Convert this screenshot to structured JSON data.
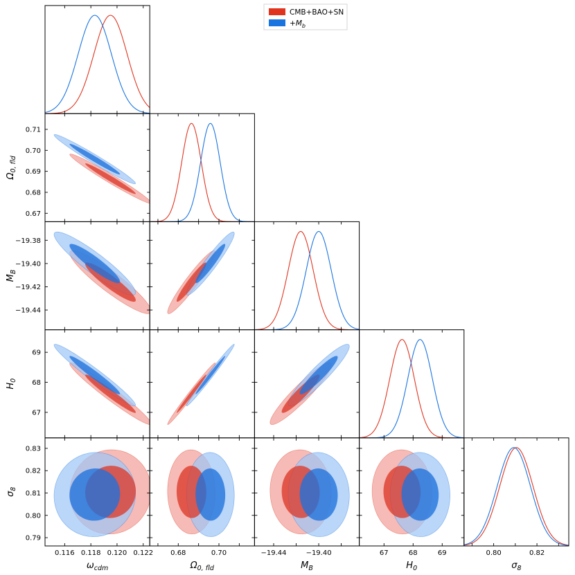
{
  "chart_data": {
    "type": "triangle-corner-plot",
    "parameters": [
      {
        "key": "omega_cdm",
        "symbol": "ω",
        "sub": "cdm",
        "range": [
          0.1145,
          0.1225
        ],
        "ticks": [
          0.116,
          0.118,
          0.12,
          0.122
        ],
        "tick_labels": [
          "0.116",
          "0.118",
          "0.120",
          "0.122"
        ]
      },
      {
        "key": "Omega_0_fld",
        "symbol": "Ω",
        "sub": "0, fld",
        "range": [
          0.666,
          0.7175
        ],
        "ticks": [
          0.67,
          0.68,
          0.69,
          0.7,
          0.71
        ],
        "tick_labels": [
          "0.67",
          "0.68",
          "0.69",
          "0.70",
          "0.71"
        ]
      },
      {
        "key": "M_B",
        "symbol": "M",
        "sub": "B",
        "range": [
          -19.457,
          -19.364
        ],
        "ticks": [
          -19.44,
          -19.42,
          -19.4,
          -19.38
        ],
        "tick_labels": [
          "−19.44",
          "−19.42",
          "−19.40",
          "−19.38"
        ]
      },
      {
        "key": "H_0",
        "symbol": "H",
        "sub": "0",
        "range": [
          66.15,
          69.75
        ],
        "ticks": [
          67,
          68,
          69
        ],
        "tick_labels": [
          "67",
          "68",
          "69"
        ]
      },
      {
        "key": "sigma_8",
        "symbol": "σ",
        "sub": "8",
        "range": [
          0.7863,
          0.8347
        ],
        "ticks": [
          0.79,
          0.8,
          0.81,
          0.82,
          0.83
        ],
        "tick_labels": [
          "0.79",
          "0.80",
          "0.81",
          "0.82",
          "0.83"
        ]
      }
    ],
    "bottom_tick_labels": [
      [
        "0.116",
        "0.118",
        "0.120",
        "0.122"
      ],
      [
        "0.68",
        "0.70"
      ],
      [
        "−19.44",
        "−19.40"
      ],
      [
        "67",
        "68",
        "69"
      ],
      [
        "0.80",
        "0.82"
      ]
    ],
    "series": [
      {
        "name": "CMB+BAO+SN",
        "color": "#e0341f",
        "fill_outer": "#f2a19a",
        "fill_inner": "#dd3a2a",
        "mean": [
          0.1195,
          0.6865,
          -19.416,
          67.62,
          0.8105
        ],
        "sigma": [
          0.00127,
          0.0048,
          0.0111,
          0.42,
          0.0077
        ]
      },
      {
        "name": "+M_b",
        "color": "#1a74e0",
        "fill_outer": "#9fc6f5",
        "fill_inner": "#1f72dc",
        "mean": [
          0.1183,
          0.6958,
          -19.4,
          68.24,
          0.8093
        ],
        "sigma": [
          0.00127,
          0.0048,
          0.0111,
          0.42,
          0.0077
        ]
      }
    ],
    "correlations": [
      [
        1.0,
        -0.98,
        -0.92,
        -0.97,
        0.03
      ],
      [
        -0.98,
        1.0,
        0.95,
        0.99,
        -0.02
      ],
      [
        -0.92,
        0.95,
        1.0,
        0.93,
        -0.03
      ],
      [
        -0.97,
        0.99,
        0.93,
        1.0,
        -0.02
      ],
      [
        0.03,
        -0.02,
        -0.03,
        -0.02,
        1.0
      ]
    ],
    "legend": {
      "position": "top-center",
      "entries": [
        "CMB+BAO+SN",
        "+M_b"
      ]
    },
    "title": "",
    "grid": false
  }
}
